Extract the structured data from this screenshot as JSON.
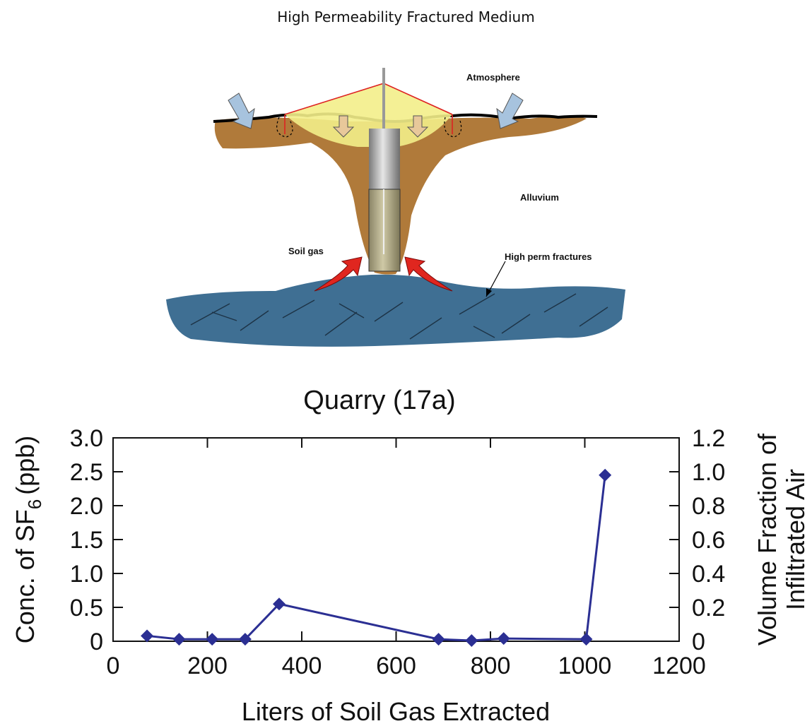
{
  "page_title": "High Permeability Fractured Medium",
  "diagram": {
    "labels": {
      "atmosphere": "Atmosphere",
      "alluvium": "Alluvium",
      "soil_gas": "Soil gas",
      "fractures": "High perm fractures"
    },
    "colors": {
      "soil": "#b07a3a",
      "rock": "#3f6f93",
      "tarp": "#f3ee8a",
      "arrow_red": "#e0261f",
      "arrow_blue": "#a7c3de"
    }
  },
  "chart_data": {
    "type": "line",
    "title": "Quarry (17a)",
    "xlabel": "Liters of Soil Gas Extracted",
    "ylabel": "Conc. of SF",
    "ylabel_subscript": "6",
    "ylabel_unit": "(ppb)",
    "y2label_line1": "Volume Fraction of",
    "y2label_line2": "Infiltrated Air",
    "xlim": [
      0,
      1200
    ],
    "ylim": [
      0,
      3.0
    ],
    "y2lim": [
      0,
      1.2
    ],
    "xticks": [
      "0",
      "200",
      "400",
      "600",
      "800",
      "1000",
      "1200"
    ],
    "yticks": [
      "0",
      "0.5",
      "1.0",
      "1.5",
      "2.0",
      "2.5",
      "3.0"
    ],
    "y2ticks": [
      "0",
      "0.2",
      "0.4",
      "0.6",
      "0.8",
      "1.0",
      "1.2"
    ],
    "series": [
      {
        "color": "#2b2f93",
        "x": [
          72,
          140,
          210,
          280,
          352,
          690,
          760,
          828,
          1003,
          1043
        ],
        "y": [
          0.08,
          0.03,
          0.03,
          0.03,
          0.55,
          0.03,
          0.01,
          0.04,
          0.03,
          2.45
        ]
      }
    ],
    "grid": false
  }
}
